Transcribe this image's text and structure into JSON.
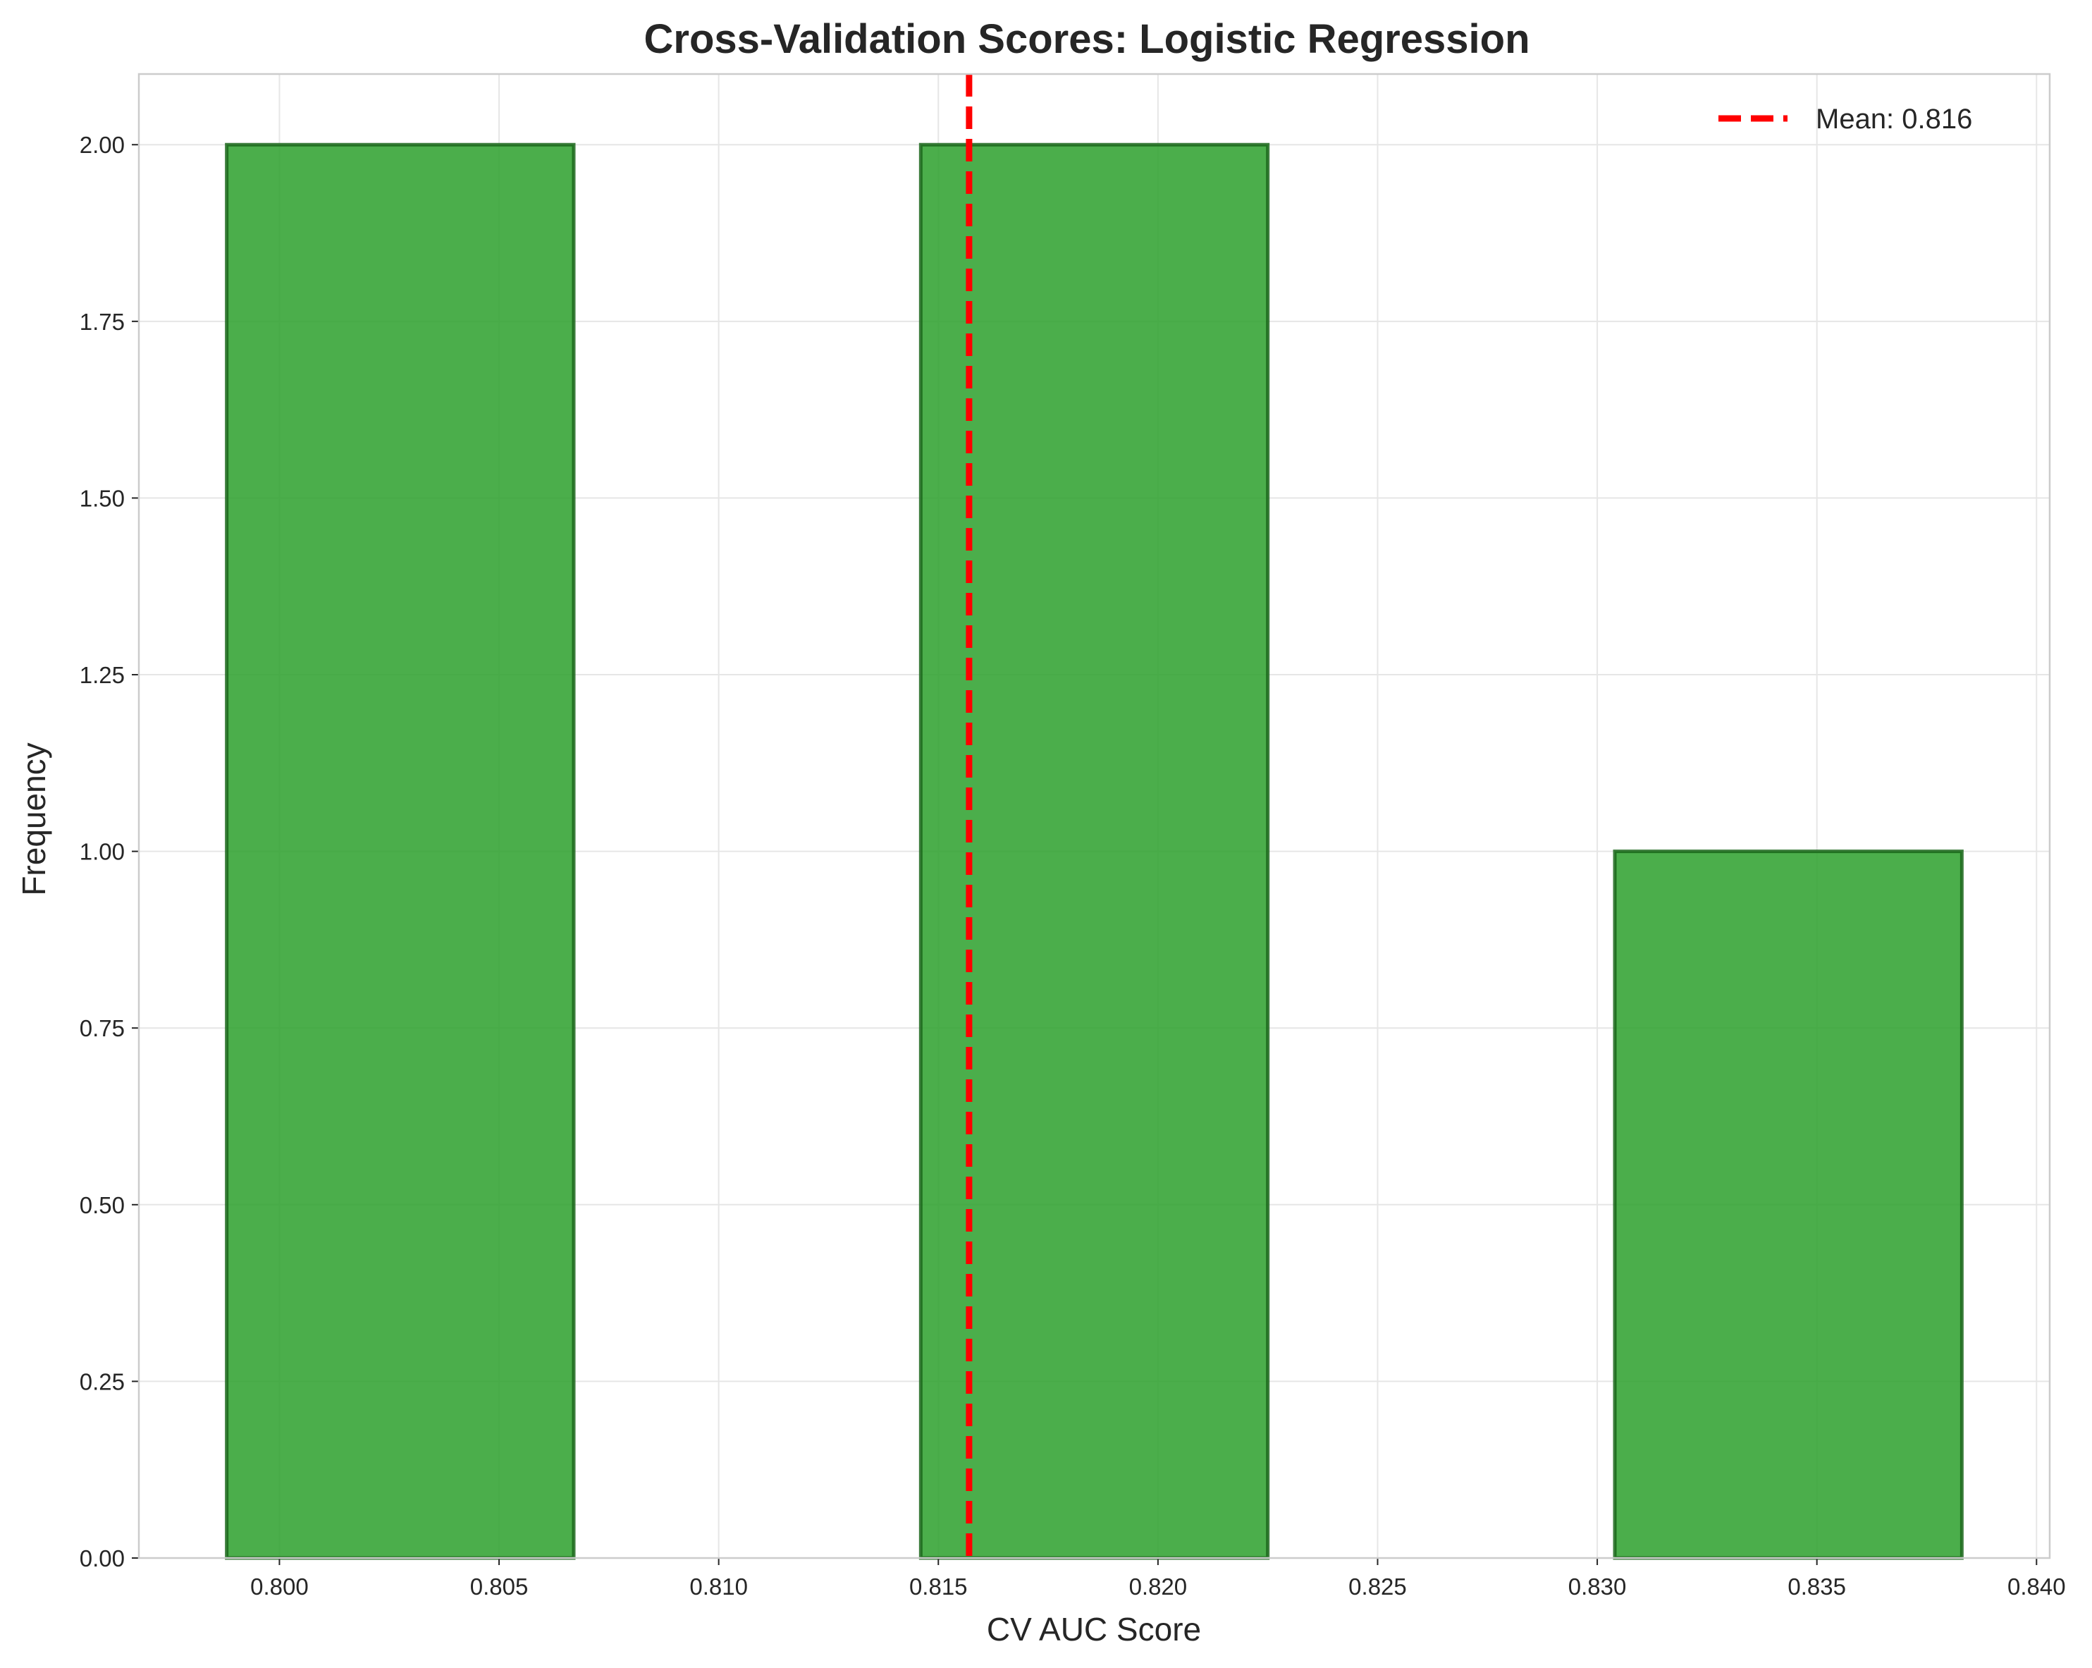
{
  "chart_data": {
    "type": "bar",
    "subtype": "histogram",
    "title": "Cross-Validation Scores: Logistic Regression",
    "xlabel": "CV AUC Score",
    "ylabel": "Frequency",
    "xlim": [
      0.7968,
      0.8403
    ],
    "ylim": [
      0,
      2.1
    ],
    "grid": true,
    "x_ticks": [
      0.8,
      0.805,
      0.81,
      0.815,
      0.82,
      0.825,
      0.83,
      0.835,
      0.84
    ],
    "x_tick_labels": [
      "0.800",
      "0.805",
      "0.810",
      "0.815",
      "0.820",
      "0.825",
      "0.830",
      "0.835",
      "0.840"
    ],
    "y_ticks": [
      0.0,
      0.25,
      0.5,
      0.75,
      1.0,
      1.25,
      1.5,
      1.75,
      2.0
    ],
    "y_tick_labels": [
      "0.00",
      "0.25",
      "0.50",
      "0.75",
      "1.00",
      "1.25",
      "1.50",
      "1.75",
      "2.00"
    ],
    "bins": [
      {
        "x0": 0.7988,
        "x1": 0.8067,
        "count": 2
      },
      {
        "x0": 0.8067,
        "x1": 0.8146,
        "count": 0
      },
      {
        "x0": 0.8146,
        "x1": 0.8225,
        "count": 2
      },
      {
        "x0": 0.8225,
        "x1": 0.8304,
        "count": 0
      },
      {
        "x0": 0.8304,
        "x1": 0.8383,
        "count": 1
      }
    ],
    "bar_color": "#2ca02c",
    "bar_edge_color": "#1a661a",
    "reference_lines": [
      {
        "orientation": "vertical",
        "x": 0.8157,
        "style": "dashed",
        "color": "#ff0000",
        "label": "Mean: 0.816"
      }
    ],
    "legend": {
      "position": "upper right",
      "entries": [
        "Mean: 0.816"
      ]
    }
  }
}
